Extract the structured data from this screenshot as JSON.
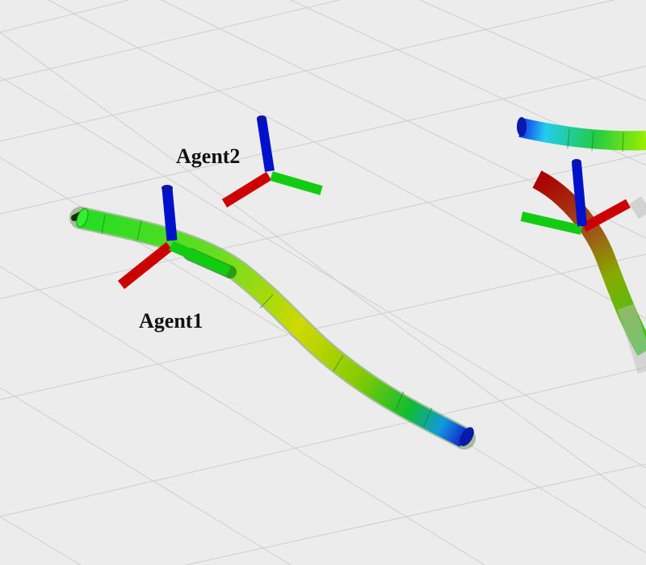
{
  "viewport": {
    "background": "#ececec",
    "grid_color": "#c8c8c8"
  },
  "agents": [
    {
      "id": "agent1",
      "label": "Agent1",
      "icon": "coordinate-frame-axes"
    },
    {
      "id": "agent2",
      "label": "Agent2",
      "icon": "coordinate-frame-axes"
    }
  ],
  "axis_colors": {
    "x": "#c40000",
    "y": "#00c400",
    "z": "#0000cc"
  },
  "trajectory_colormap": [
    "#0000ff",
    "#00bfff",
    "#00ff7f",
    "#7fff00",
    "#d4e000",
    "#c0a000",
    "#a05000",
    "#a00000"
  ]
}
